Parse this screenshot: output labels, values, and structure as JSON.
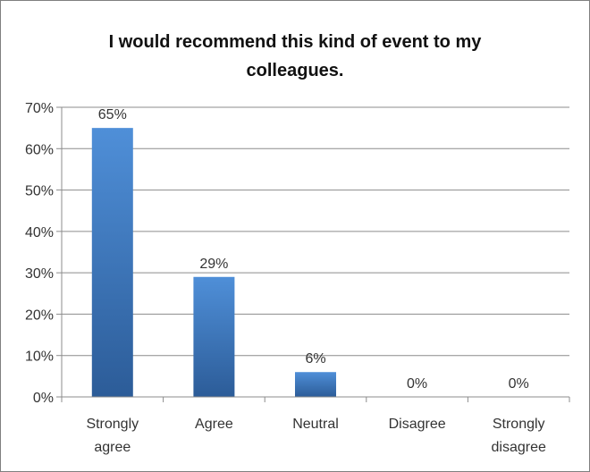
{
  "chart_data": {
    "type": "bar",
    "title_lines": [
      "I would recommend this kind of event to my",
      "colleagues."
    ],
    "categories": [
      [
        "Strongly",
        "agree"
      ],
      [
        "Agree"
      ],
      [
        "Neutral"
      ],
      [
        "Disagree"
      ],
      [
        "Strongly",
        "disagree"
      ]
    ],
    "values": [
      65,
      29,
      6,
      0,
      0
    ],
    "data_labels": [
      "65%",
      "29%",
      "6%",
      "0%",
      "0%"
    ],
    "ylim": [
      0,
      70
    ],
    "yticks": [
      "0%",
      "10%",
      "20%",
      "30%",
      "40%",
      "50%",
      "60%",
      "70%"
    ],
    "grid": true,
    "legend": false,
    "bar_color": "#3c78c0",
    "bar_color_light": "#4f8fd8",
    "bar_color_dark": "#2c5c98"
  }
}
